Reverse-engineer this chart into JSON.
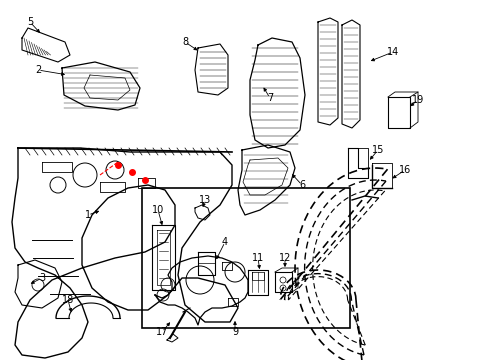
{
  "bg_color": "#ffffff",
  "fig_width": 4.89,
  "fig_height": 3.6,
  "dpi": 100,
  "line_color": "#000000"
}
